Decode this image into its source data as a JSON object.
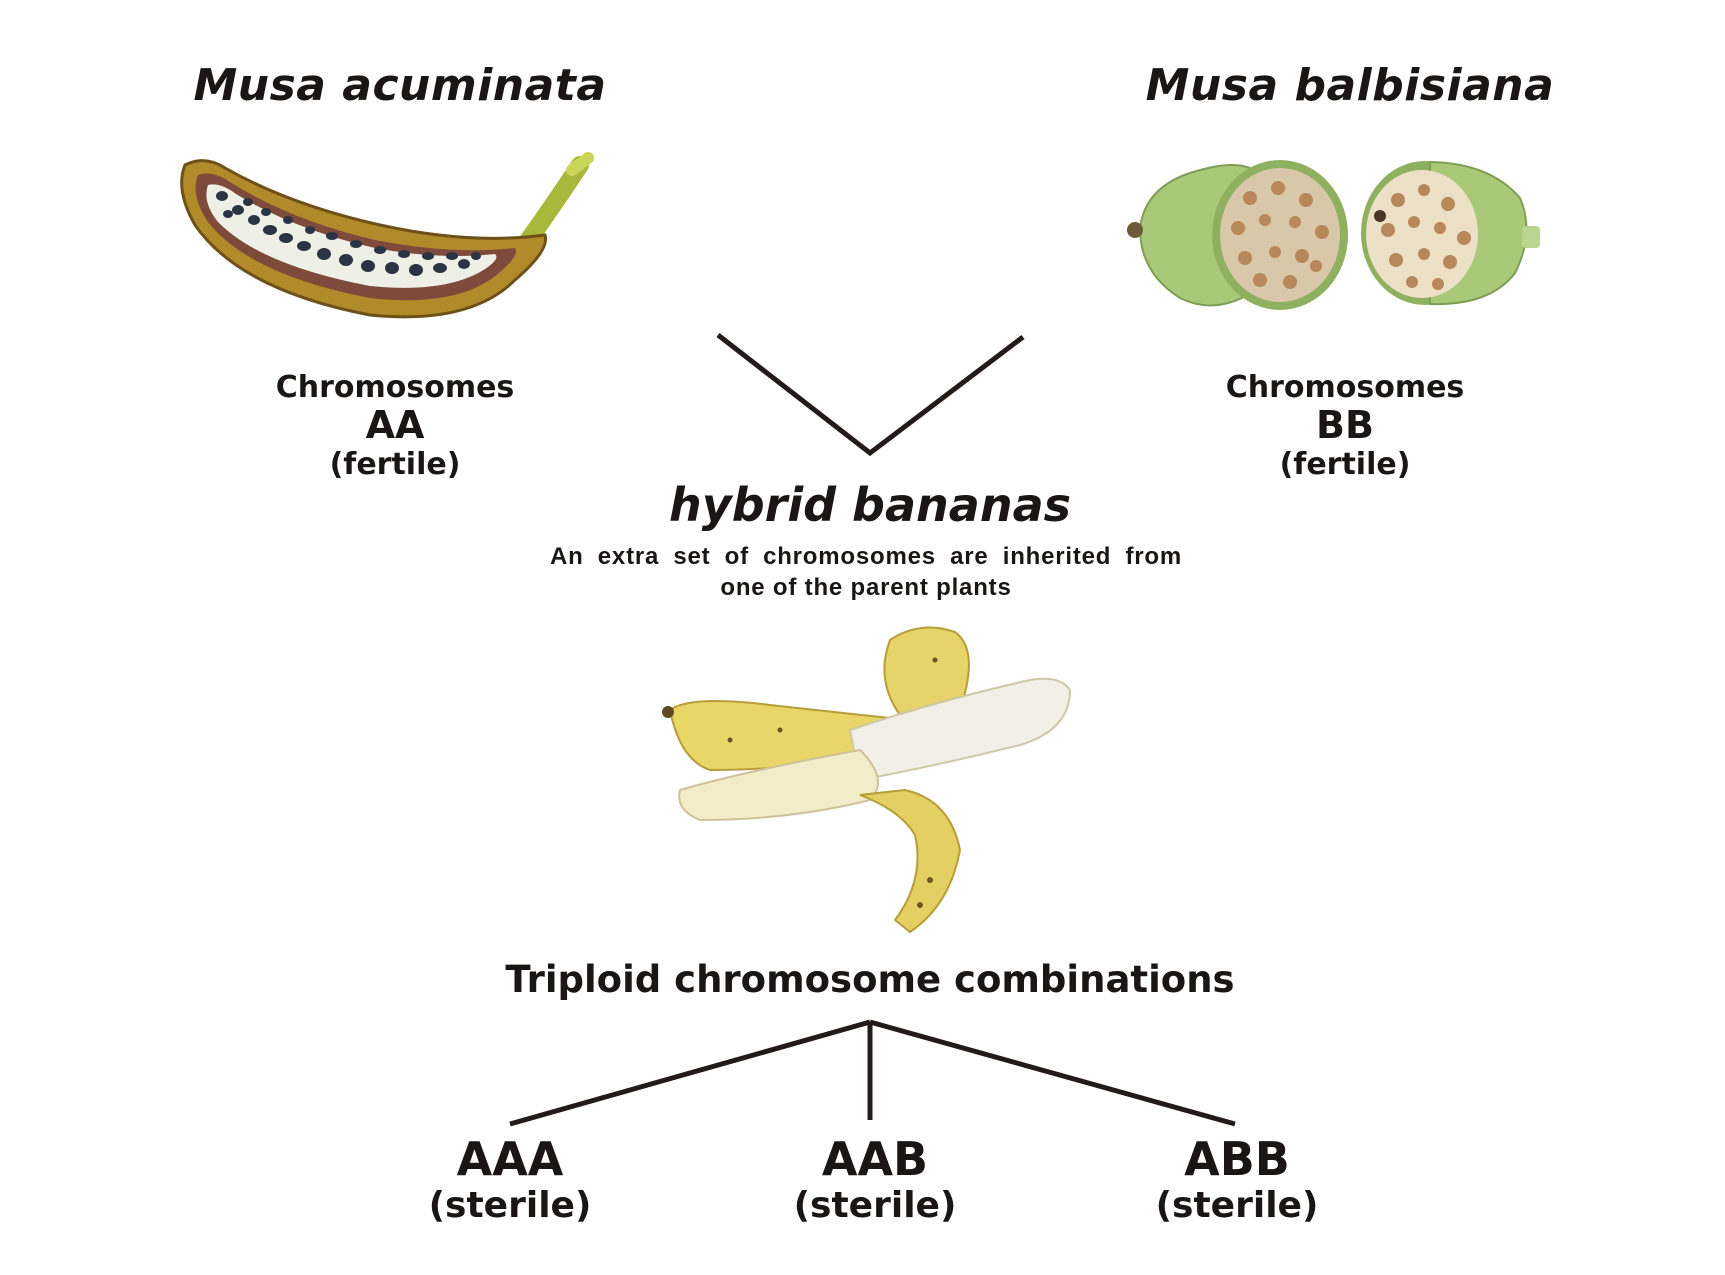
{
  "parents": {
    "left": {
      "name": "Musa acuminata",
      "chromosomes_label": "Chromosomes",
      "code": "AA",
      "status": "(fertile)"
    },
    "right": {
      "name": "Musa balbisiana",
      "chromosomes_label": "Chromosomes",
      "code": "BB",
      "status": "(fertile)"
    }
  },
  "hybrid": {
    "title": "hybrid bananas",
    "description": "An extra set of chromosomes are inherited from one of the parent plants"
  },
  "triploid": {
    "title": "Triploid chromosome combinations",
    "combos": [
      {
        "code": "AAA",
        "status": "(sterile)"
      },
      {
        "code": "AAB",
        "status": "(sterile)"
      },
      {
        "code": "ABB",
        "status": "(sterile)"
      }
    ]
  },
  "colors": {
    "line": "#231a1a",
    "text": "#1b1616",
    "banana_peel": "#e9d96a",
    "banana_flesh": "#f3efdc",
    "green_fruit": "#a9c979",
    "seed": "#2b3445"
  }
}
